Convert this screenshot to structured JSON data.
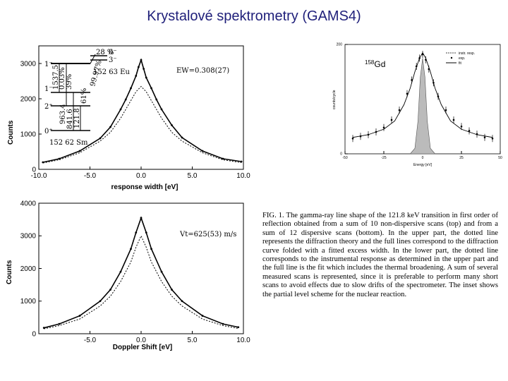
{
  "title": "Krystalové spektrometry (GAMS4)",
  "chart_data": [
    {
      "type": "line",
      "id": "top",
      "xlabel": "response width [eV]",
      "ylabel": "Counts",
      "xlim": [
        -10,
        10
      ],
      "ylim": [
        0,
        3500
      ],
      "xticks": [
        "-10.0",
        "-5.0",
        "0.0",
        "5.0",
        "10.0"
      ],
      "xtick_values": [
        -10,
        -5,
        0,
        5,
        10
      ],
      "yticks": [
        "0",
        "1000",
        "2000",
        "3000"
      ],
      "ytick_values": [
        0,
        1000,
        2000,
        3000
      ],
      "annotation": "EW=0.308(27)",
      "series": [
        {
          "name": "data + fit (full line)",
          "x": [
            -9.6,
            -8,
            -6,
            -4,
            -3,
            -2,
            -1.5,
            -1,
            -0.5,
            -0.25,
            0,
            0.25,
            0.5,
            1,
            1.5,
            2,
            3,
            4,
            6,
            8,
            9.8
          ],
          "values": [
            200,
            300,
            520,
            880,
            1200,
            1700,
            1980,
            2300,
            2650,
            2900,
            3100,
            2850,
            2600,
            2300,
            1980,
            1700,
            1250,
            900,
            520,
            300,
            220
          ]
        },
        {
          "name": "diffraction theory (dotted)",
          "x": [
            -9.6,
            -8,
            -6,
            -4,
            -3,
            -2,
            -1,
            -0.5,
            0,
            0.5,
            1,
            2,
            3,
            4,
            6,
            8,
            9.8
          ],
          "values": [
            180,
            270,
            470,
            800,
            1050,
            1450,
            1950,
            2200,
            2350,
            2200,
            1950,
            1450,
            1050,
            800,
            470,
            270,
            190
          ]
        }
      ],
      "level_scheme": {
        "top_label": "28 %",
        "levels_left": [
          "1⁻",
          "1⁻",
          "2⁺",
          "0⁺"
        ],
        "levels_right": [
          "0⁻",
          "3⁻"
        ],
        "energies": [
          "1537.5",
          "963.4",
          "841.6",
          "121.8"
        ],
        "branches": [
          "0.03%",
          "39%",
          "61%"
        ],
        "decay_branch": "99.97%",
        "parent": "152 63 Eu",
        "daughter": "152 62 Sm"
      }
    },
    {
      "type": "line",
      "id": "bottom",
      "xlabel": "Doppler Shift [eV]",
      "ylabel": "Counts",
      "xlim": [
        -10,
        10
      ],
      "ylim": [
        0,
        4000
      ],
      "xticks": [
        "-5.0",
        "0.0",
        "5.0",
        "10.0"
      ],
      "xtick_values": [
        -5,
        0,
        5,
        10
      ],
      "yticks": [
        "0",
        "1000",
        "2000",
        "3000",
        "4000"
      ],
      "ytick_values": [
        0,
        1000,
        2000,
        3000,
        4000
      ],
      "annotation": "Vt=625(53) m/s",
      "series": [
        {
          "name": "data + fit (full line)",
          "x": [
            -9.5,
            -8,
            -6,
            -4,
            -3,
            -2,
            -1,
            -0.5,
            0,
            0.5,
            1,
            2,
            3,
            4,
            6,
            8,
            9.5
          ],
          "values": [
            180,
            300,
            550,
            1000,
            1350,
            1900,
            2600,
            3100,
            3550,
            3100,
            2600,
            1900,
            1350,
            1000,
            550,
            300,
            200
          ]
        },
        {
          "name": "instrumental response (dotted)",
          "x": [
            -9.5,
            -8,
            -6,
            -4,
            -3,
            -2,
            -1,
            -0.5,
            0,
            0.5,
            1,
            2,
            3,
            4,
            6,
            8,
            9.5
          ],
          "values": [
            150,
            250,
            450,
            850,
            1150,
            1600,
            2200,
            2650,
            3000,
            2650,
            2200,
            1600,
            1150,
            850,
            450,
            250,
            160
          ]
        }
      ]
    },
    {
      "type": "line",
      "id": "inset",
      "title": "158Gd",
      "title_sup": "158",
      "title_main": "Gd",
      "xlabel": "Energy [eV]",
      "ylabel": "counts/cycle",
      "xlim": [
        -50,
        50
      ],
      "ylim": [
        0,
        200
      ],
      "xticks": [
        "-50",
        "-25",
        "0",
        "25",
        "50"
      ],
      "xtick_values": [
        -50,
        -25,
        0,
        25,
        50
      ],
      "yticks": [
        "0",
        "200"
      ],
      "ytick_values": [
        0,
        200
      ],
      "legend": [
        "instr. resp.",
        "exp.",
        "fit"
      ],
      "series": [
        {
          "name": "fit",
          "x": [
            -45,
            -35,
            -25,
            -18,
            -12,
            -8,
            -5,
            -2,
            0,
            2,
            5,
            8,
            12,
            18,
            25,
            35,
            45
          ],
          "values": [
            30,
            35,
            45,
            60,
            90,
            120,
            150,
            175,
            185,
            175,
            150,
            120,
            90,
            60,
            45,
            35,
            30
          ]
        },
        {
          "name": "exp.",
          "x": [
            -45,
            -40,
            -35,
            -30,
            -25,
            -20,
            -15,
            -10,
            -7,
            -4,
            -2,
            0,
            2,
            4,
            7,
            10,
            15,
            20,
            25,
            30,
            35,
            40,
            45
          ],
          "values": [
            28,
            32,
            35,
            40,
            48,
            62,
            80,
            110,
            135,
            160,
            175,
            182,
            172,
            155,
            130,
            105,
            80,
            62,
            50,
            42,
            36,
            30,
            28
          ]
        },
        {
          "name": "instr. resp.",
          "x": [
            -8,
            -5,
            -3,
            -1.5,
            0,
            1.5,
            3,
            5,
            8
          ],
          "values": [
            0,
            10,
            60,
            140,
            175,
            140,
            60,
            10,
            0
          ]
        }
      ]
    }
  ],
  "caption": "FIG. 1.   The gamma-ray line shape of the 121.8 keV transition in first order of reflection obtained from a sum of 10 non-dispersive scans (top) and from a sum of 12 dispersive scans (bottom). In the upper part, the dotted line represents the diffraction theory and the full lines correspond to the diffraction curve folded with a fitted excess width. In the lower part, the dotted line corresponds to the instrumental response as determined in the upper part and the full line is the fit which includes the thermal broadening. A sum of several measured scans is represented, since it is preferable to perform many short scans to avoid effects due to slow drifts of the spectrometer. The inset shows the partial level scheme for the nuclear reaction."
}
